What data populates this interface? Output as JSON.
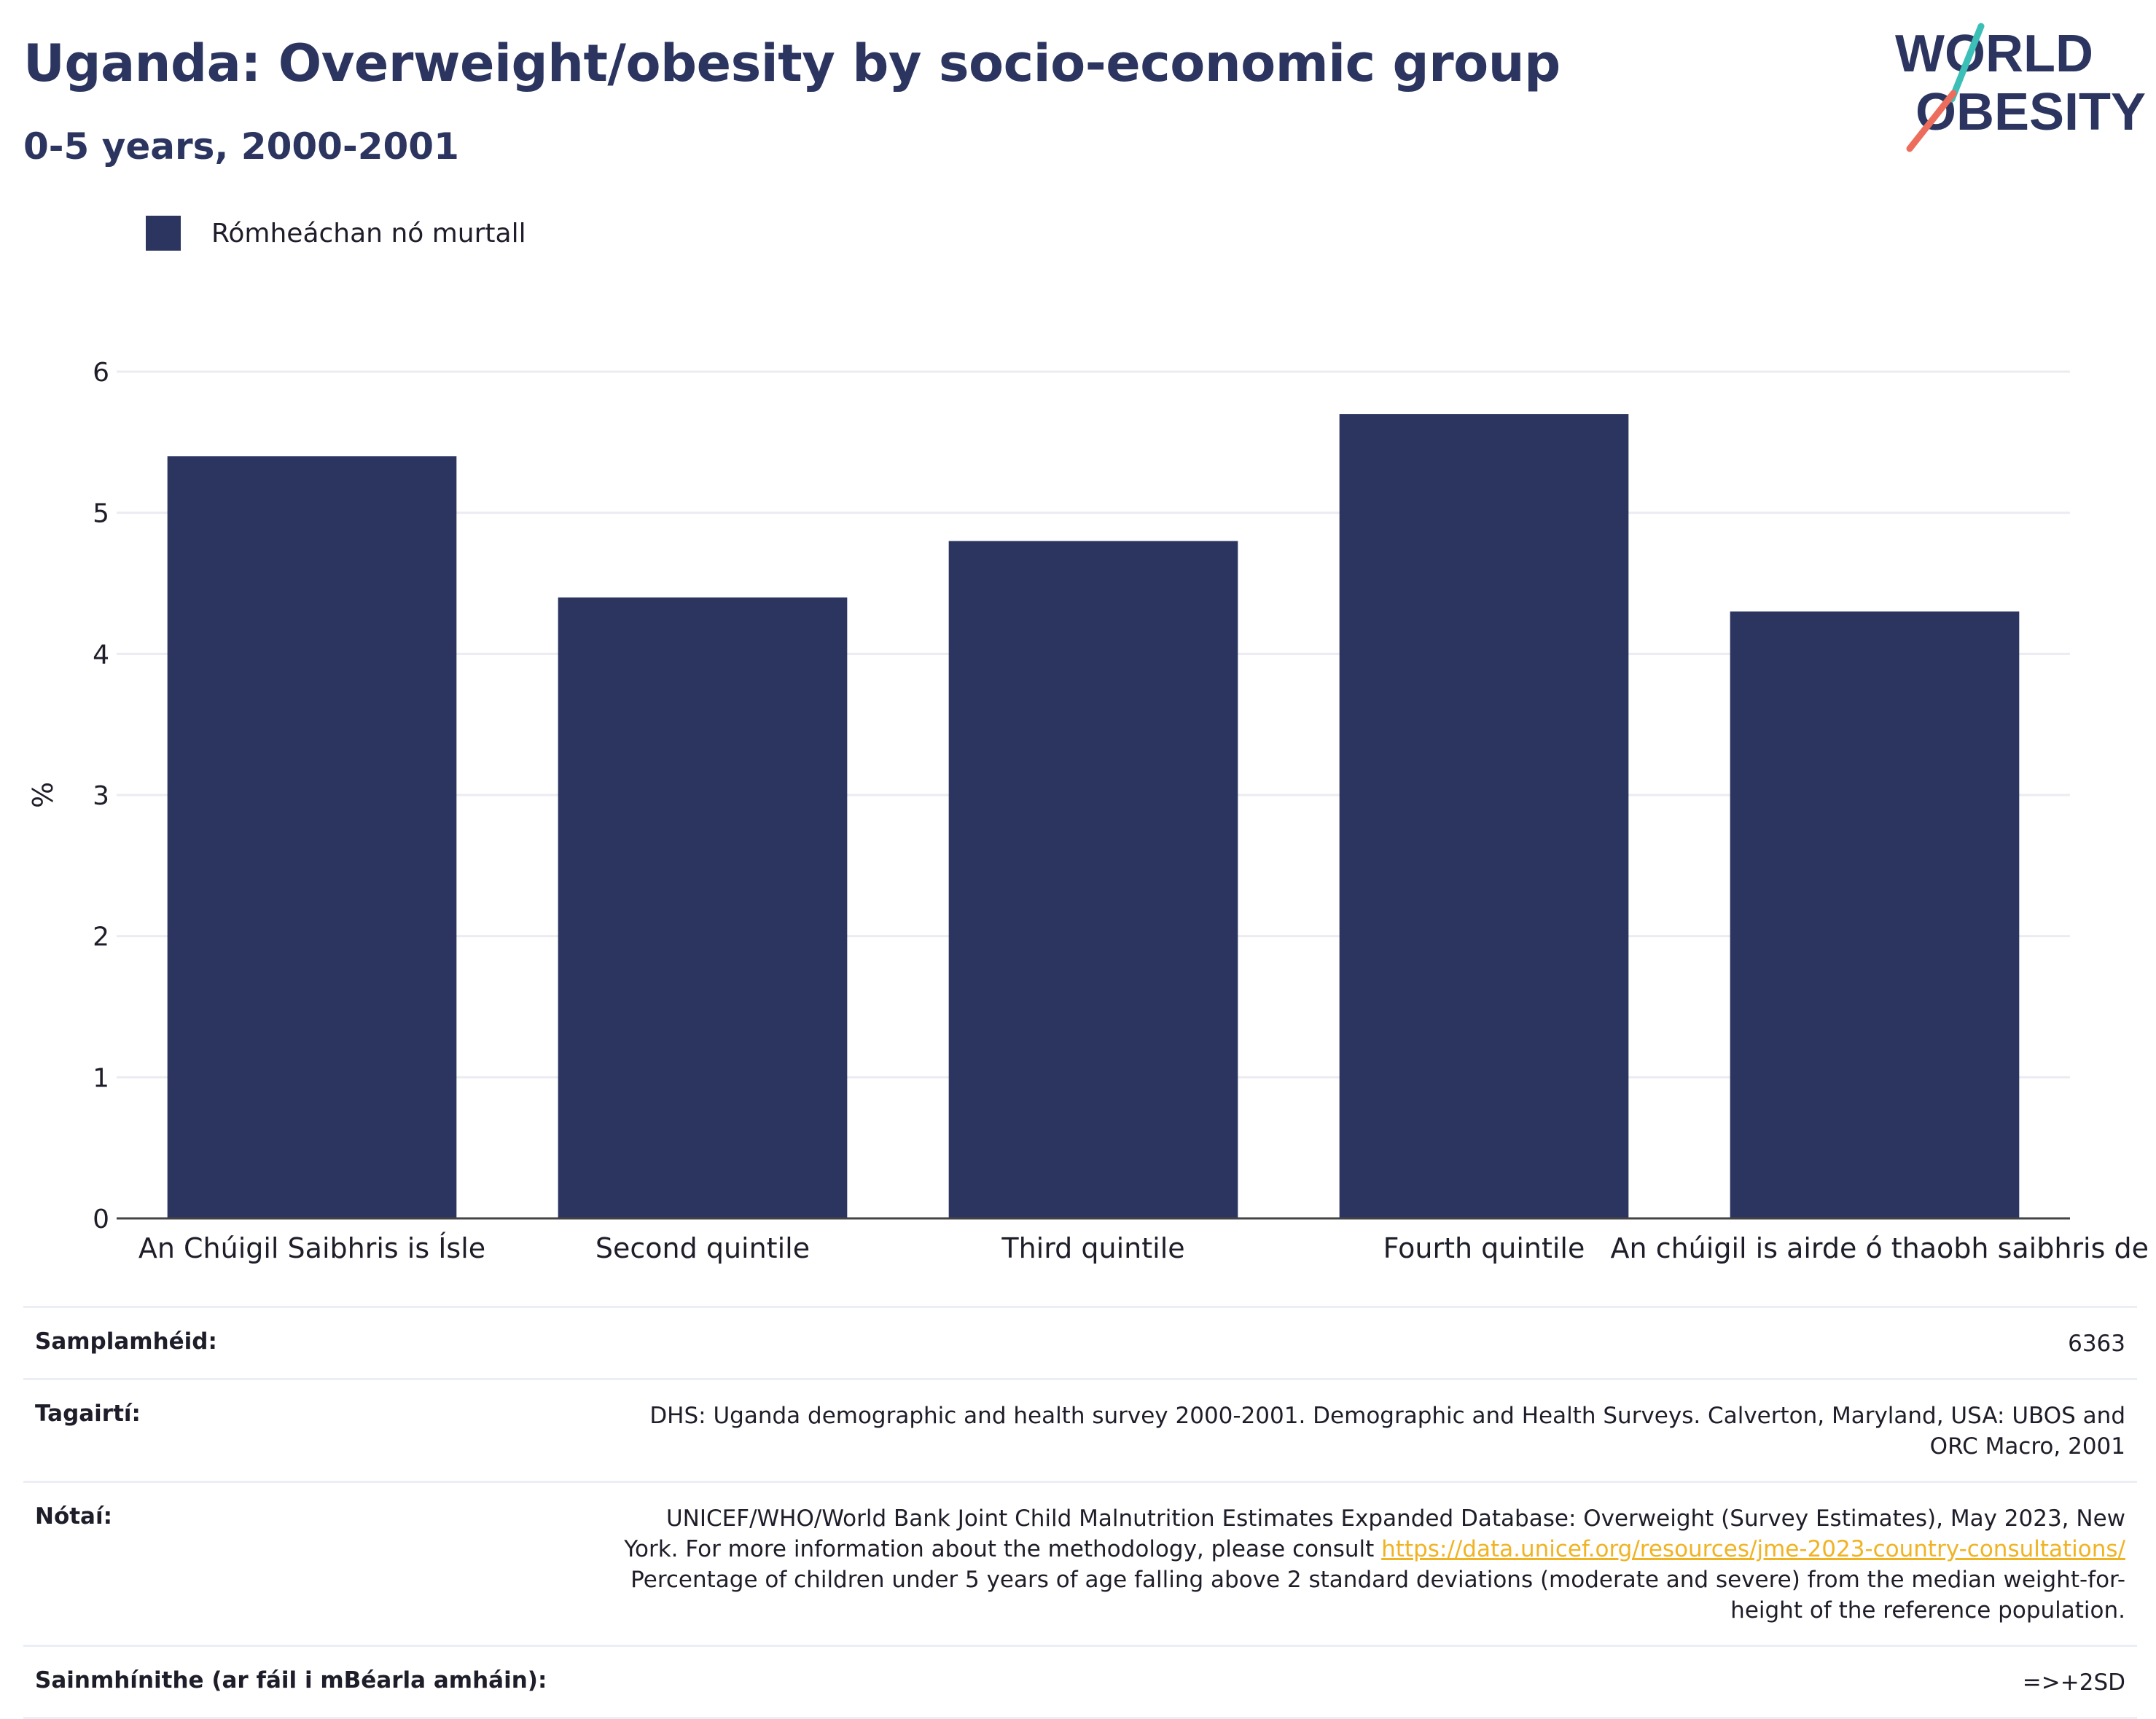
{
  "header": {
    "title": "Uganda: Overweight/obesity by socio-economic group",
    "subtitle": "0-5 years, 2000-2001"
  },
  "logo": {
    "line1": "WORLD",
    "line2": "OBESITY",
    "colors": {
      "text": "#2b3560",
      "slash_teal": "#3bbfb7",
      "slash_coral": "#ec6d5b"
    }
  },
  "colors": {
    "bar": "#2b3560",
    "grid": "#ebebf2",
    "axis": "#444444"
  },
  "chart_data": {
    "type": "bar",
    "categories": [
      "An Chúigil Saibhris is Ísle",
      "Second quintile",
      "Third quintile",
      "Fourth quintile",
      "An chúigil is airde ó thaobh saibhris de"
    ],
    "series": [
      {
        "name": "Rómheáchan nó murtall",
        "values": [
          5.4,
          4.4,
          4.8,
          5.7,
          4.3
        ]
      }
    ],
    "xlabel": "",
    "ylabel": "%",
    "ylim": [
      0,
      6
    ],
    "yticks": [
      0,
      1,
      2,
      3,
      4,
      5,
      6
    ],
    "grid": true,
    "legend_position": "top-left"
  },
  "table": {
    "sample_label": "Samplamhéid:",
    "sample_value": "6363",
    "references_label": "Tagairtí:",
    "references_value": "DHS: Uganda demographic and health survey 2000-2001. Demographic and Health Surveys. Calverton, Maryland, USA: UBOS and ORC Macro, 2001",
    "notes_label": "Nótaí:",
    "notes_text_1": "UNICEF/WHO/World Bank Joint Child Malnutrition Estimates Expanded Database: Overweight (Survey Estimates), May 2023, New York. For more information about the methodology, please consult",
    "notes_link": "https://data.unicef.org/resources/jme-2023-country-consultations/",
    "notes_text_2": "Percentage of children under 5 years of age falling above 2 standard deviations (moderate and severe) from the median weight-for-height of the reference population.",
    "definitions_label": "Sainmhínithe (ar fáil i mBéarla amháin):",
    "definitions_value": "=>+2SD"
  }
}
